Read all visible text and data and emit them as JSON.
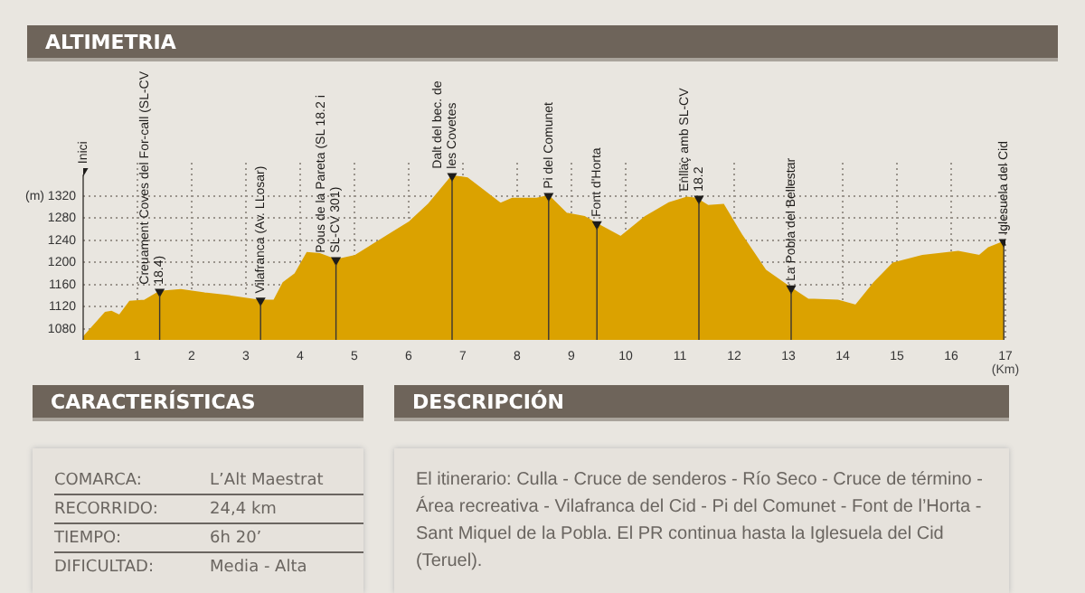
{
  "chart_data": [
    {
      "type": "area",
      "title": "ALTIMETRIA",
      "xlabel": "(Km)",
      "x": [
        0,
        0.41,
        0.52,
        0.67,
        0.86,
        1.13,
        1.41,
        1.8,
        2.24,
        2.69,
        3.24,
        3.52,
        3.69,
        3.91,
        4.13,
        4.36,
        4.66,
        5.02,
        5.36,
        6.02,
        6.36,
        6.8,
        7.08,
        7.36,
        7.69,
        7.91,
        8.36,
        8.58,
        8.91,
        9.24,
        9.47,
        9.91,
        10.36,
        10.8,
        11.13,
        11.3,
        11.52,
        11.8,
        12.13,
        12.58,
        13.02,
        13.36,
        13.91,
        14.24,
        14.58,
        14.93,
        15.47,
        16.13,
        16.52,
        16.69,
        16.97
      ],
      "series": [
        {
          "color": "#dba200",
          "values": [
            1064,
            1109,
            1111,
            1104,
            1129,
            1131,
            1147,
            1150,
            1144,
            1139,
            1131,
            1131,
            1163,
            1179,
            1217,
            1215,
            1204,
            1212,
            1233,
            1273,
            1304,
            1356,
            1352,
            1331,
            1306,
            1315,
            1315,
            1320,
            1288,
            1282,
            1269,
            1246,
            1282,
            1307,
            1317,
            1315,
            1302,
            1304,
            1250,
            1185,
            1155,
            1133,
            1131,
            1122,
            1163,
            1198,
            1212,
            1219,
            1212,
            1226,
            1237
          ]
        },
        {
          "type": "scatter",
          "marker": "triangle",
          "color": "#1e1c1a",
          "x": [
            0,
            1.41,
            3.27,
            4.66,
            6.8,
            8.58,
            9.47,
            11.35,
            13.05,
            16.97
          ],
          "values": [
            1365,
            1147,
            1131,
            1204,
            1356,
            1320,
            1269,
            1315,
            1153,
            1237
          ]
        }
      ],
      "xlim": [
        0,
        17
      ],
      "xticks": [
        1,
        2,
        3,
        4,
        5,
        6,
        7,
        8,
        9,
        10,
        11,
        12,
        13,
        14,
        15,
        16,
        17
      ],
      "ylim": [
        1060,
        1380
      ],
      "yticks": [
        1080,
        1120,
        1160,
        1200,
        1240,
        1280,
        {
          "value": 1320,
          "label": "(m) 1320"
        }
      ],
      "grid": true,
      "legend": false,
      "ref_lines": [
        {
          "axis": "x",
          "value": 0,
          "label": "Inici"
        },
        {
          "axis": "x",
          "value": 1.41,
          "label": "Creuament Coves del For-call (SL-CV 18.4)"
        },
        {
          "axis": "x",
          "value": 3.27,
          "label": "Vilafranca (Av. LLosar)"
        },
        {
          "axis": "x",
          "value": 4.66,
          "label": "Pous de la Pareta (SL 18.2 i SL-CV 301)"
        },
        {
          "axis": "x",
          "value": 6.8,
          "label": "Dalt del bec. de les Covetes"
        },
        {
          "axis": "x",
          "value": 8.58,
          "label": "Pi del Comunet"
        },
        {
          "axis": "x",
          "value": 9.47,
          "label": "Font d'Horta"
        },
        {
          "axis": "x",
          "value": 11.35,
          "label": "Enllaç amb SL-CV 18.2"
        },
        {
          "axis": "x",
          "value": 13.05,
          "label": "La Pobla del Bellestar"
        },
        {
          "axis": "x",
          "value": 16.97,
          "label": "Iglesuela del Cid"
        }
      ]
    },
    {
      "type": "other",
      "title": "CARACTERÍSTICAS",
      "annotations": [
        "COMARCA:",
        "L’Alt Maestrat",
        "RECORRIDO:",
        "24,4 km",
        "TIEMPO:",
        "6h 20’",
        "DIFICULTAD:",
        "Media - Alta"
      ]
    },
    {
      "type": "other",
      "title": "DESCRIPCIÓN",
      "annotations": [
        "El itinerario: Culla - Cruce de senderos - Río Seco - Cruce de término - Área recreativa - Vilafranca del Cid - Pi del Comunet - Font de l’Horta - Sant Miquel de la Pobla. El PR continua hasta la Iglesuela del Cid (Teruel)."
      ]
    }
  ]
}
